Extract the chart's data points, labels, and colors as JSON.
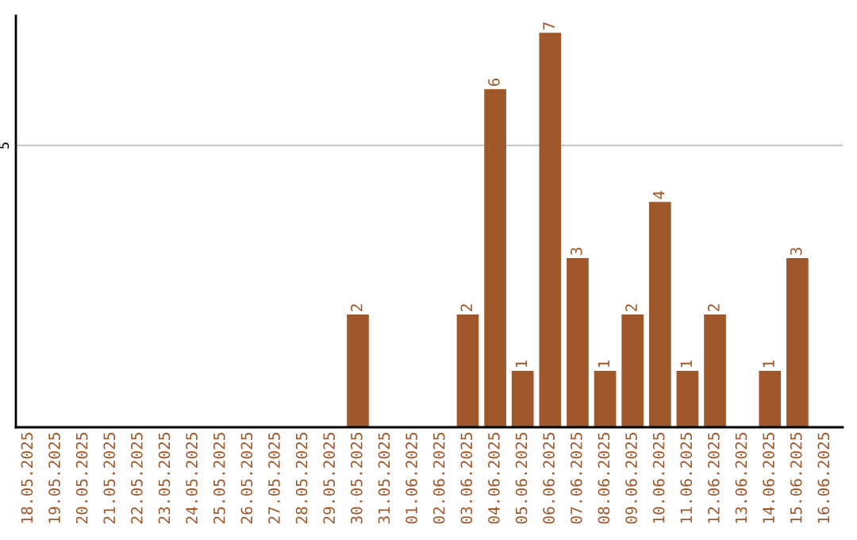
{
  "chart_data": {
    "type": "bar",
    "categories": [
      "18.05.2025",
      "19.05.2025",
      "20.05.2025",
      "21.05.2025",
      "22.05.2025",
      "23.05.2025",
      "24.05.2025",
      "25.05.2025",
      "26.05.2025",
      "27.05.2025",
      "28.05.2025",
      "29.05.2025",
      "30.05.2025",
      "31.05.2025",
      "01.06.2025",
      "02.06.2025",
      "03.06.2025",
      "04.06.2025",
      "05.06.2025",
      "06.06.2025",
      "07.06.2025",
      "08.06.2025",
      "09.06.2025",
      "10.06.2025",
      "11.06.2025",
      "12.06.2025",
      "13.06.2025",
      "14.06.2025",
      "15.06.2025",
      "16.06.2025"
    ],
    "values": [
      null,
      null,
      null,
      null,
      null,
      null,
      null,
      null,
      null,
      null,
      null,
      null,
      2,
      null,
      null,
      null,
      2,
      6,
      1,
      7,
      3,
      1,
      2,
      4,
      1,
      2,
      null,
      1,
      3,
      null
    ],
    "color": "#a0582a",
    "ylim": [
      0,
      7.3
    ],
    "yticks": [
      5
    ],
    "grid": "y",
    "data_labels": true
  }
}
